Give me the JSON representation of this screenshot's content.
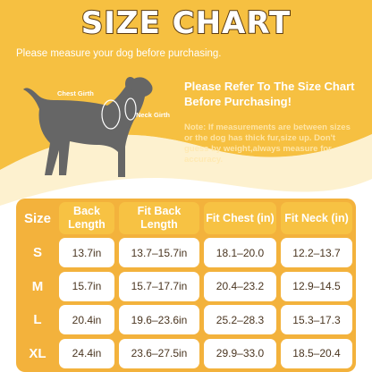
{
  "header": {
    "title": "SIZE CHART",
    "subtitle": "Please measure your dog before purchasing."
  },
  "diagram": {
    "labels": [
      "Chest Girth",
      "Neck Girth"
    ]
  },
  "notice": {
    "heading": "Please Refer To The Size Chart Before Purchasing!",
    "note": "Note: If measurements are between sizes or the dog has thick fur,size up. Don't guess by weight,always measure for accuracy."
  },
  "table": {
    "columns": [
      "Size",
      "Back Length",
      "Fit Back Length",
      "Fit Chest (in)",
      "Fit Neck (in)"
    ],
    "rows": [
      [
        "S",
        "13.7in",
        "13.7–15.7in",
        "18.1–20.0",
        "12.2–13.7"
      ],
      [
        "M",
        "15.7in",
        "15.7–17.7in",
        "20.4–23.2",
        "12.9–14.5"
      ],
      [
        "L",
        "20.4in",
        "19.6–23.6in",
        "25.2–28.3",
        "15.3–17.3"
      ],
      [
        "XL",
        "24.4in",
        "23.6–27.5in",
        "29.9–33.0",
        "18.5–20.4"
      ]
    ]
  }
}
